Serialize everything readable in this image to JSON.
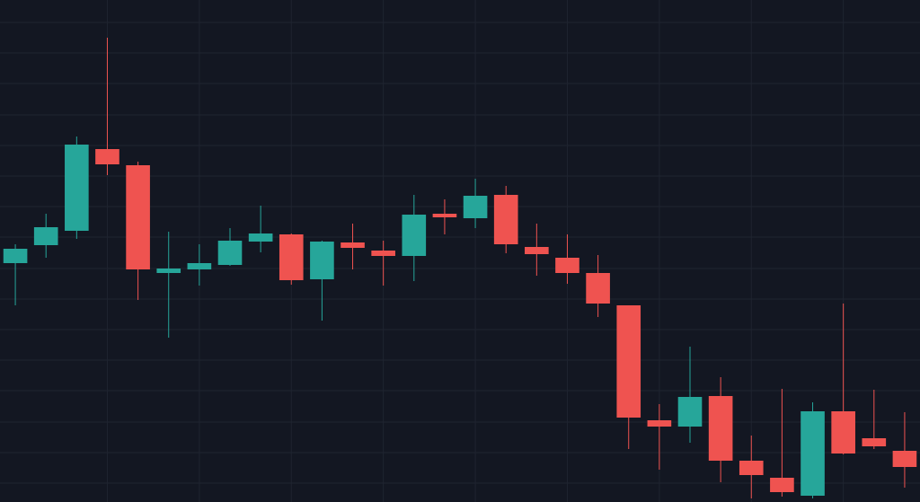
{
  "chart_data": {
    "type": "candlestick",
    "categories": [
      null,
      null,
      null,
      null,
      null,
      null,
      null,
      null,
      null,
      null,
      null,
      null,
      null,
      null,
      null,
      null,
      null,
      null,
      null,
      null,
      null,
      null,
      null,
      null,
      null,
      null,
      null,
      null,
      null,
      null
    ],
    "open": [
      266,
      286,
      302,
      393,
      375,
      255,
      259,
      264,
      290,
      298,
      248,
      289,
      280,
      274,
      321,
      316,
      342,
      284,
      272,
      255,
      219,
      91,
      84,
      118,
      46,
      27,
      7,
      101,
      71,
      57
    ],
    "high": [
      287,
      321,
      407,
      517,
      379,
      301,
      287,
      305,
      330,
      299,
      291,
      310,
      291,
      342,
      337,
      360,
      352,
      310,
      298,
      275,
      219,
      109,
      173,
      139,
      74,
      126,
      111,
      221,
      125,
      100
    ],
    "low": [
      219,
      272,
      293,
      364,
      225,
      183,
      241,
      263,
      278,
      242,
      202,
      259,
      241,
      246,
      298,
      305,
      277,
      252,
      243,
      206,
      59,
      36,
      66,
      22,
      4,
      6,
      4,
      53,
      59,
      16
    ],
    "close": [
      282,
      306,
      398,
      376,
      259,
      260,
      266,
      291,
      299,
      247,
      290,
      283,
      274,
      320,
      317,
      341,
      287,
      276,
      255,
      221,
      94,
      84,
      117,
      46,
      30,
      11,
      101,
      54,
      62,
      39
    ],
    "up_color": "#26a69a",
    "down_color": "#ef5350",
    "ylim": [
      0,
      559
    ],
    "yticks": [
      21,
      55,
      89,
      124,
      158,
      192,
      226,
      260,
      295,
      329,
      363,
      397,
      431,
      466,
      500,
      534
    ],
    "grid": true
  }
}
